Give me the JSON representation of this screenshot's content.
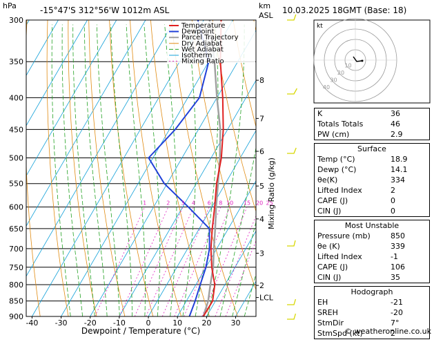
{
  "header": {
    "hpa_label": "hPa",
    "station": "-15°47'S  312°56'W  1012m  ASL",
    "km_label": "km",
    "asl_label": "ASL",
    "datetime": "10.03.2025  18GMT  (Base: 18)"
  },
  "footer": {
    "credit": "© weatheronline.co.uk"
  },
  "colors": {
    "temperature": "#e02020",
    "dewpoint": "#2040d8",
    "parcel": "#a0a0a0",
    "dry_adiabat": "#e08a10",
    "wet_adiabat": "#20a020",
    "isotherm": "#10a0d8",
    "mixing_ratio": "#e020c0",
    "wind": "#d8d800"
  },
  "chart_data": {
    "type": "skew-t",
    "ylabel": "hPa",
    "xlabel": "Dewpoint / Temperature (°C)",
    "right_label": "Mixing Ratio (g/kg)",
    "legend": [
      "Temperature",
      "Dewpoint",
      "Parcel Trajectory",
      "Dry Adiabat",
      "Wet Adiabat",
      "Isotherm",
      "Mixing Ratio"
    ],
    "pressure_ticks": [
      300,
      350,
      400,
      450,
      500,
      550,
      600,
      650,
      700,
      750,
      800,
      850,
      900
    ],
    "temp_ticks": [
      -40,
      -30,
      -20,
      -10,
      0,
      10,
      20,
      30
    ],
    "xlim": [
      -42,
      37
    ],
    "height_ticks": [
      {
        "km": "8",
        "p": 375
      },
      {
        "km": "7",
        "p": 432
      },
      {
        "km": "6",
        "p": 488
      },
      {
        "km": "5",
        "p": 555
      },
      {
        "km": "4",
        "p": 627
      },
      {
        "km": "3",
        "p": 712
      },
      {
        "km": "2",
        "p": 802
      },
      {
        "km": "LCL",
        "p": 839
      }
    ],
    "mixing_ratio_labels": [
      "1",
      "2",
      "3",
      "4",
      "6",
      "8",
      "10",
      "15",
      "20",
      "25"
    ],
    "mixing_ratio_values": [
      1,
      2,
      3,
      4,
      6,
      8,
      10,
      15,
      20,
      25
    ],
    "temperature": [
      [
        900,
        18.9
      ],
      [
        850,
        19
      ],
      [
        800,
        16.5
      ],
      [
        750,
        12
      ],
      [
        700,
        8
      ],
      [
        650,
        4.5
      ],
      [
        600,
        1
      ],
      [
        550,
        -3
      ],
      [
        500,
        -6.5
      ],
      [
        450,
        -11.5
      ],
      [
        400,
        -18
      ],
      [
        350,
        -26
      ],
      [
        300,
        -34
      ]
    ],
    "dewpoint": [
      [
        900,
        14.1
      ],
      [
        850,
        13
      ],
      [
        800,
        11.5
      ],
      [
        750,
        10
      ],
      [
        700,
        7.5
      ],
      [
        650,
        3.5
      ],
      [
        600,
        -8
      ],
      [
        550,
        -21
      ],
      [
        500,
        -31.5
      ],
      [
        450,
        -28
      ],
      [
        400,
        -26
      ],
      [
        350,
        -30
      ],
      [
        300,
        -42
      ]
    ],
    "parcel": [
      [
        900,
        18.9
      ],
      [
        850,
        17.5
      ],
      [
        800,
        15
      ],
      [
        750,
        12.5
      ],
      [
        700,
        9
      ],
      [
        650,
        5.5
      ],
      [
        600,
        1.5
      ],
      [
        550,
        -2.5
      ],
      [
        500,
        -7
      ],
      [
        450,
        -12.5
      ],
      [
        400,
        -20
      ],
      [
        350,
        -28
      ],
      [
        300,
        -38
      ]
    ]
  },
  "hodograph": {
    "label": "kt",
    "rings": [
      "10",
      "20",
      "30",
      "40"
    ]
  },
  "indices": {
    "top": [
      {
        "label": "K",
        "value": "36"
      },
      {
        "label": "Totals Totals",
        "value": "46"
      },
      {
        "label": "PW (cm)",
        "value": "2.9"
      }
    ],
    "surface": {
      "title": "Surface",
      "rows": [
        {
          "label": "Temp (°C)",
          "value": "18.9"
        },
        {
          "label": "Dewp (°C)",
          "value": "14.1"
        },
        {
          "label": "θe(K)",
          "value": "334"
        },
        {
          "label": "Lifted Index",
          "value": "2"
        },
        {
          "label": "CAPE (J)",
          "value": "0"
        },
        {
          "label": "CIN (J)",
          "value": "0"
        }
      ]
    },
    "most_unstable": {
      "title": "Most Unstable",
      "rows": [
        {
          "label": "Pressure (mb)",
          "value": "850"
        },
        {
          "label": "θe (K)",
          "value": "339"
        },
        {
          "label": "Lifted Index",
          "value": "-1"
        },
        {
          "label": "CAPE (J)",
          "value": "106"
        },
        {
          "label": "CIN (J)",
          "value": "35"
        }
      ]
    },
    "hodograph_box": {
      "title": "Hodograph",
      "rows": [
        {
          "label": "EH",
          "value": "-21"
        },
        {
          "label": "SREH",
          "value": "-20"
        },
        {
          "label": "StmDir",
          "value": "7°"
        },
        {
          "label": "StmSpd (kt)",
          "value": "2"
        }
      ]
    }
  }
}
